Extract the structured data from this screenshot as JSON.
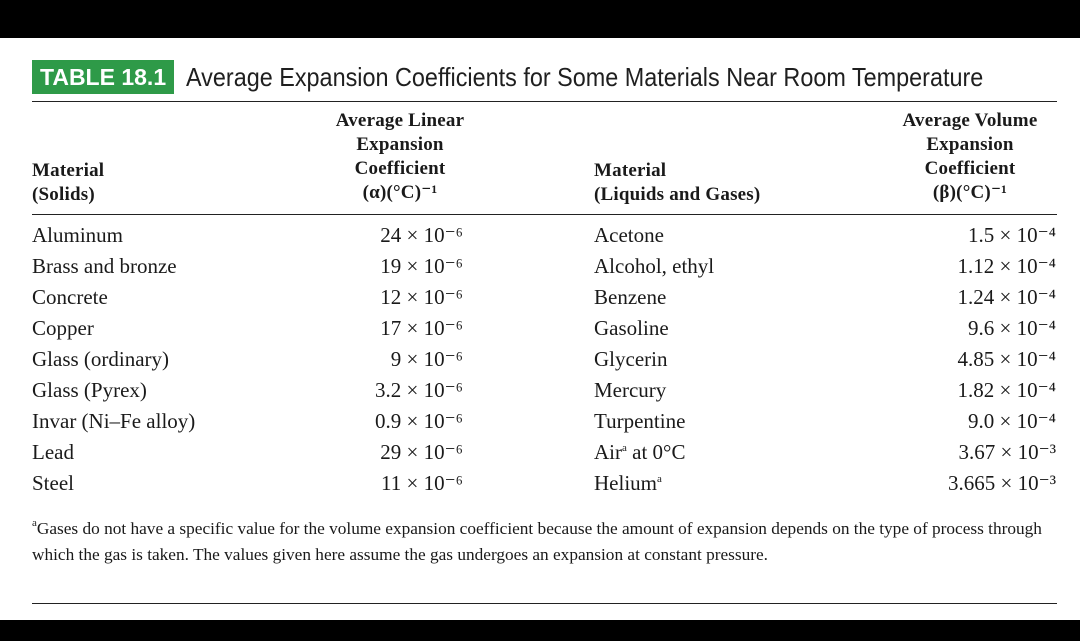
{
  "table": {
    "label": "TABLE 18.1",
    "title": "Average Expansion Coefficients for Some Materials Near Room Temperature",
    "headers": {
      "material_solids": [
        "Material",
        "(Solids)"
      ],
      "linear": [
        "Average Linear",
        "Expansion",
        "Coefficient",
        "(α)(°C)⁻¹"
      ],
      "material_liquids": [
        "Material",
        "(Liquids and Gases)"
      ],
      "volume": [
        "Average Volume",
        "Expansion",
        "Coefficient",
        "(β)(°C)⁻¹"
      ]
    },
    "solids": [
      {
        "material": "Aluminum",
        "value": "24 × 10⁻⁶"
      },
      {
        "material": "Brass and bronze",
        "value": "19 × 10⁻⁶"
      },
      {
        "material": "Concrete",
        "value": "12 × 10⁻⁶"
      },
      {
        "material": "Copper",
        "value": "17 × 10⁻⁶"
      },
      {
        "material": "Glass (ordinary)",
        "value": "9 × 10⁻⁶"
      },
      {
        "material": "Glass (Pyrex)",
        "value": "3.2 × 10⁻⁶"
      },
      {
        "material": "Invar (Ni–Fe alloy)",
        "value": "0.9 × 10⁻⁶"
      },
      {
        "material": "Lead",
        "value": "29 × 10⁻⁶"
      },
      {
        "material": "Steel",
        "value": "11 × 10⁻⁶"
      }
    ],
    "liquids_gases": [
      {
        "material": "Acetone",
        "footnote": "",
        "value": "1.5 × 10⁻⁴"
      },
      {
        "material": "Alcohol, ethyl",
        "footnote": "",
        "value": "1.12 × 10⁻⁴"
      },
      {
        "material": "Benzene",
        "footnote": "",
        "value": "1.24 × 10⁻⁴"
      },
      {
        "material": "Gasoline",
        "footnote": "",
        "value": "9.6 × 10⁻⁴"
      },
      {
        "material": "Glycerin",
        "footnote": "",
        "value": "4.85 × 10⁻⁴"
      },
      {
        "material": "Mercury",
        "footnote": "",
        "value": "1.82 × 10⁻⁴"
      },
      {
        "material": "Turpentine",
        "footnote": "",
        "value": "9.0 × 10⁻⁴"
      },
      {
        "material": "Air",
        "footnote": "a",
        "suffix": " at 0°C",
        "value": "3.67 × 10⁻³"
      },
      {
        "material": "Helium",
        "footnote": "a",
        "suffix": "",
        "value": "3.665 × 10⁻³"
      }
    ],
    "footnote_mark": "a",
    "footnote": "Gases do not have a specific value for the volume expansion coefficient because the amount of expansion depends on the type of process through which the gas is taken. The values given here assume the gas undergoes an expansion at constant pressure."
  },
  "colors": {
    "badge": "#2e9a48",
    "background": "#ffffff",
    "frame": "#000000"
  }
}
